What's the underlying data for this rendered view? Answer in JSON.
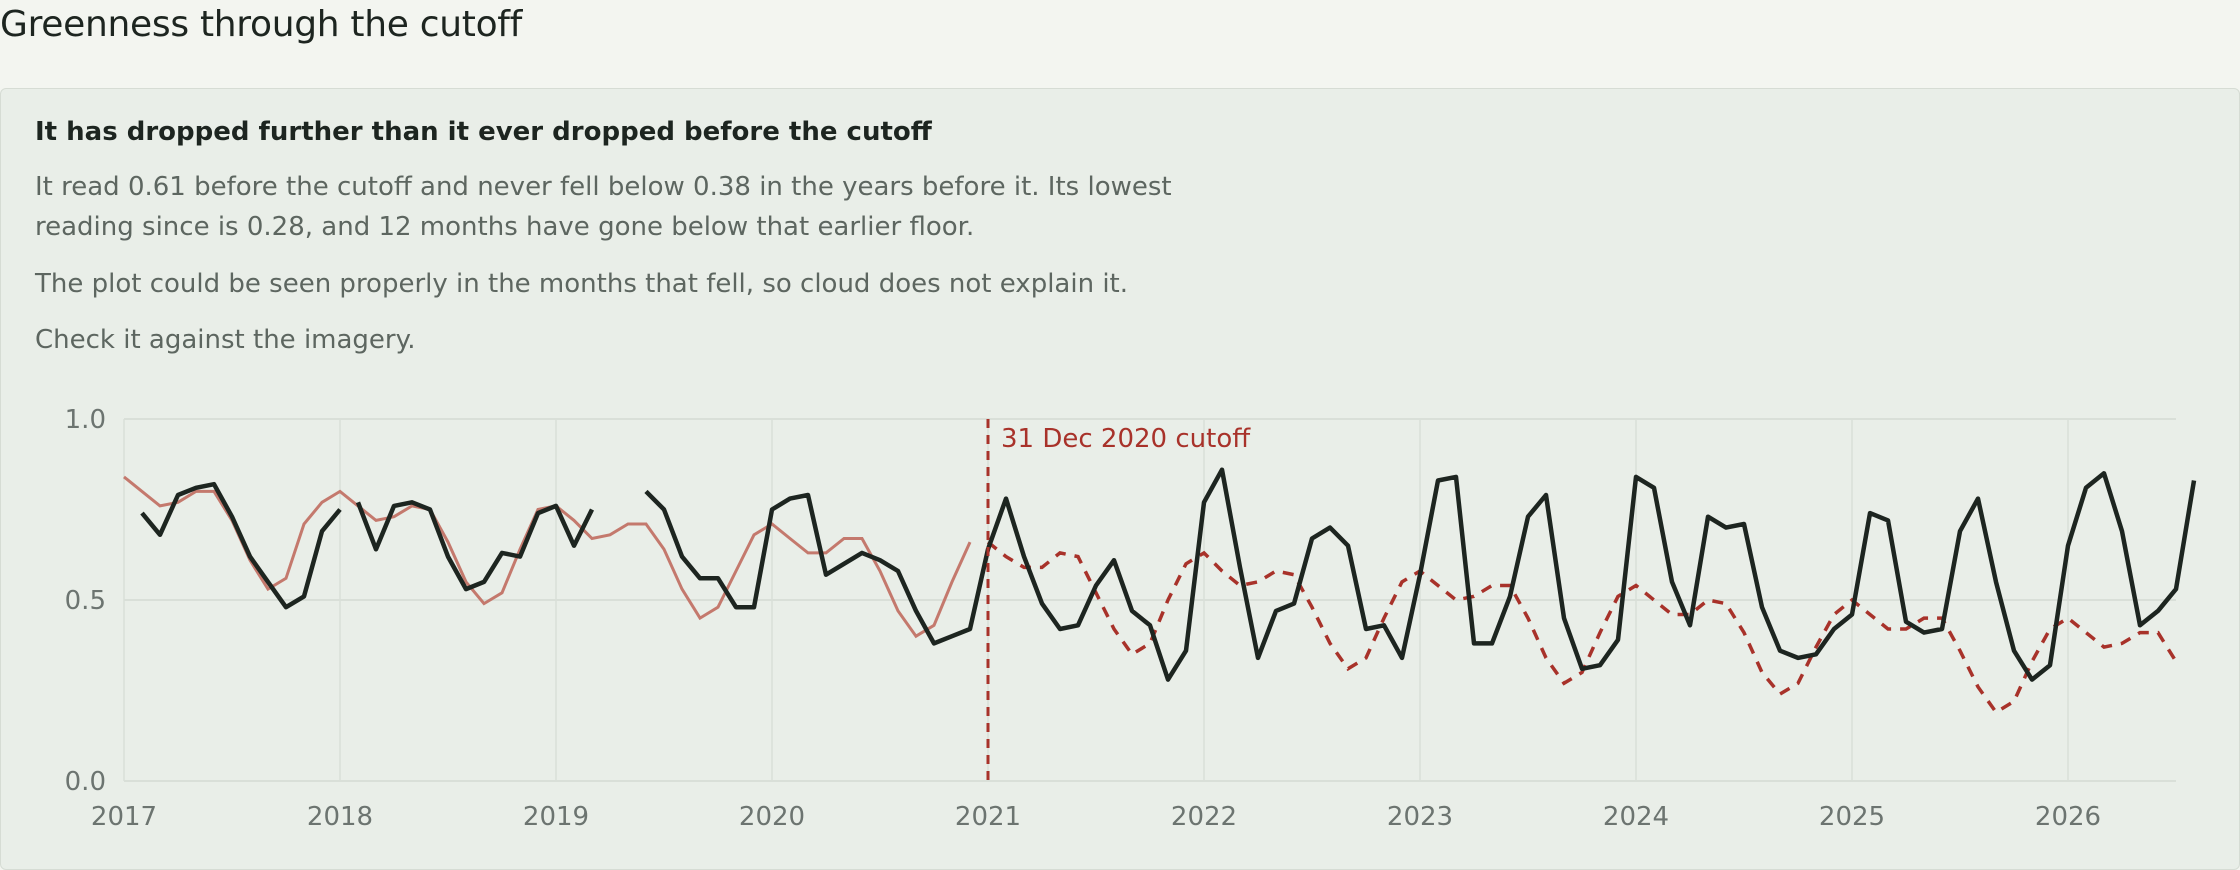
{
  "page": {
    "title": "Greenness through the cutoff",
    "heading": "It has dropped further than it ever dropped before the cutoff",
    "paragraphs": [
      "It read 0.61 before the cutoff and never fell below 0.38 in the years before it. Its lowest reading since is 0.28, and 12 months have gone below that earlier floor.",
      "The plot could be seen properly in the months that fell, so cloud does not explain it.",
      "Check it against the imagery."
    ]
  },
  "colors": {
    "observed": "#1d2520",
    "expected": "#c4796d",
    "cutoff": "#a8322a",
    "grid": "#d9dfd8",
    "tick_text": "#6c7470"
  },
  "chart_data": {
    "type": "line",
    "title": "",
    "xlabel": "",
    "ylabel": "",
    "x_range": [
      "2017-01",
      "2026-07"
    ],
    "xticks": [
      "2017",
      "2018",
      "2019",
      "2020",
      "2021",
      "2022",
      "2023",
      "2024",
      "2025",
      "2026"
    ],
    "ylim": [
      0.0,
      1.0
    ],
    "yticks": [
      "0.0",
      "0.5",
      "1.0"
    ],
    "grid": true,
    "cutoff": {
      "date": "2021-01",
      "label": "31 Dec 2020 cutoff"
    },
    "series": [
      {
        "style": "observed",
        "segments": [
          {
            "start": "2017-02",
            "values": [
              0.74,
              0.68,
              0.79,
              0.81,
              0.82,
              0.73,
              0.62,
              0.55,
              0.48,
              0.51,
              0.69,
              0.75
            ]
          },
          {
            "start": "2018-02",
            "values": [
              0.77,
              0.64,
              0.76,
              0.77,
              0.75,
              0.62,
              0.53,
              0.55,
              0.63,
              0.62,
              0.74,
              0.76,
              0.65,
              0.75
            ]
          },
          {
            "start": "2019-06",
            "values": [
              0.8,
              0.75,
              0.62,
              0.56,
              0.56,
              0.48,
              0.48,
              0.75,
              0.78,
              0.79,
              0.57,
              0.6,
              0.63,
              0.61,
              0.58,
              0.47,
              0.38,
              0.4,
              0.42,
              0.64,
              0.78,
              0.62,
              0.49,
              0.42,
              0.43,
              0.54,
              0.61,
              0.47,
              0.43,
              0.28,
              0.36,
              0.77,
              0.86,
              0.59,
              0.34,
              0.47,
              0.49,
              0.67,
              0.7,
              0.65,
              0.42,
              0.43,
              0.34,
              0.57,
              0.83,
              0.84,
              0.38,
              0.38,
              0.51,
              0.73,
              0.79,
              0.45,
              0.31,
              0.32,
              0.39,
              0.84,
              0.81,
              0.55,
              0.43,
              0.73,
              0.7,
              0.71,
              0.48,
              0.36,
              0.34,
              0.35,
              0.42,
              0.46,
              0.74,
              0.72,
              0.44,
              0.41,
              0.42,
              0.69,
              0.78,
              0.55,
              0.36,
              0.28,
              0.32,
              0.65,
              0.81,
              0.85,
              0.69,
              0.43,
              0.47,
              0.53,
              0.83
            ]
          }
        ]
      },
      {
        "style": "expected",
        "segments": [
          {
            "start": "2017-01",
            "values": [
              0.84,
              0.8,
              0.76,
              0.77,
              0.8,
              0.8,
              0.72,
              0.61,
              0.53,
              0.56,
              0.71,
              0.77,
              0.8,
              0.76,
              0.72,
              0.73,
              0.76,
              0.75,
              0.66,
              0.55,
              0.49,
              0.52,
              0.64,
              0.75,
              0.76,
              0.72,
              0.67,
              0.68,
              0.71,
              0.71,
              0.64,
              0.53,
              0.45,
              0.48,
              0.58,
              0.68,
              0.71,
              0.67,
              0.63,
              0.63,
              0.67,
              0.67,
              0.58,
              0.47,
              0.4,
              0.43,
              0.55,
              0.66
            ]
          }
        ]
      },
      {
        "style": "projected",
        "segments": [
          {
            "start": "2021-01",
            "values": [
              0.66,
              0.62,
              0.59,
              0.59,
              0.63,
              0.62,
              0.52,
              0.42,
              0.35,
              0.38,
              0.5,
              0.6,
              0.63,
              0.58,
              0.54,
              0.55,
              0.58,
              0.57,
              0.48,
              0.38,
              0.31,
              0.34,
              0.45,
              0.55,
              0.58,
              0.54,
              0.5,
              0.51,
              0.54,
              0.54,
              0.45,
              0.34,
              0.27,
              0.3,
              0.41,
              0.51,
              0.54,
              0.5,
              0.46,
              0.46,
              0.5,
              0.49,
              0.41,
              0.3,
              0.24,
              0.27,
              0.37,
              0.46,
              0.5,
              0.46,
              0.42,
              0.42,
              0.45,
              0.45,
              0.36,
              0.26,
              0.19,
              0.22,
              0.33,
              0.42,
              0.45,
              0.41,
              0.37,
              0.38,
              0.41,
              0.41,
              0.33
            ]
          }
        ]
      }
    ]
  }
}
